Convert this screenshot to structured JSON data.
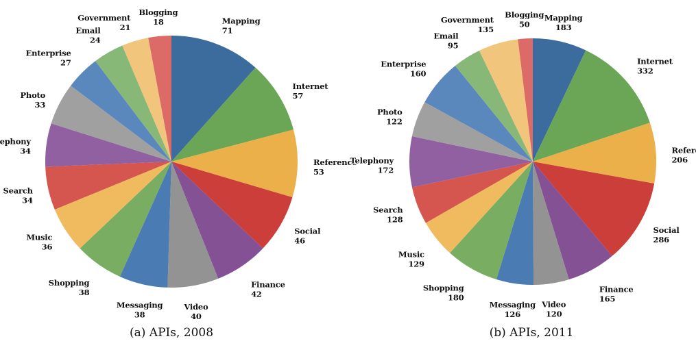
{
  "chart_data": [
    {
      "type": "pie",
      "title": "(a) APIs, 2008",
      "start": "12 o'clock, clockwise",
      "slices": [
        {
          "label": "Mapping",
          "value": 71,
          "color": "#3c6b9e"
        },
        {
          "label": "Internet",
          "value": 57,
          "color": "#6aa656"
        },
        {
          "label": "Reference",
          "value": 53,
          "color": "#ebb04a"
        },
        {
          "label": "Social",
          "value": 46,
          "color": "#cc3e3a"
        },
        {
          "label": "Finance",
          "value": 42,
          "color": "#845195"
        },
        {
          "label": "Video",
          "value": 40,
          "color": "#939393"
        },
        {
          "label": "Messaging",
          "value": 38,
          "color": "#4a7bb2"
        },
        {
          "label": "Shopping",
          "value": 38,
          "color": "#78ad62"
        },
        {
          "label": "Music",
          "value": 36,
          "color": "#f0bb5f"
        },
        {
          "label": "Search",
          "value": 34,
          "color": "#d5554f"
        },
        {
          "label": "Telephony",
          "value": 34,
          "color": "#9160a1"
        },
        {
          "label": "Photo",
          "value": 33,
          "color": "#a0a0a0"
        },
        {
          "label": "Enterprise",
          "value": 27,
          "color": "#5a88bc"
        },
        {
          "label": "Email",
          "value": 24,
          "color": "#88b878"
        },
        {
          "label": "Government",
          "value": 21,
          "color": "#f2c57c"
        },
        {
          "label": "Blogging",
          "value": 18,
          "color": "#dc6a66"
        }
      ]
    },
    {
      "type": "pie",
      "title": "(b) APIs, 2011",
      "start": "12 o'clock, clockwise",
      "slices": [
        {
          "label": "Mapping",
          "value": 183,
          "color": "#3c6b9e"
        },
        {
          "label": "Internet",
          "value": 332,
          "color": "#6aa656"
        },
        {
          "label": "Reference",
          "value": 206,
          "color": "#ebb04a"
        },
        {
          "label": "Social",
          "value": 286,
          "color": "#cc3e3a"
        },
        {
          "label": "Finance",
          "value": 165,
          "color": "#845195"
        },
        {
          "label": "Video",
          "value": 120,
          "color": "#939393"
        },
        {
          "label": "Messaging",
          "value": 126,
          "color": "#4a7bb2"
        },
        {
          "label": "Shopping",
          "value": 180,
          "color": "#78ad62"
        },
        {
          "label": "Music",
          "value": 129,
          "color": "#f0bb5f"
        },
        {
          "label": "Search",
          "value": 128,
          "color": "#d5554f"
        },
        {
          "label": "Telephony",
          "value": 172,
          "color": "#9160a1"
        },
        {
          "label": "Photo",
          "value": 122,
          "color": "#a0a0a0"
        },
        {
          "label": "Enterprise",
          "value": 160,
          "color": "#5a88bc"
        },
        {
          "label": "Email",
          "value": 95,
          "color": "#88b878"
        },
        {
          "label": "Government",
          "value": 135,
          "color": "#f2c57c"
        },
        {
          "label": "Blogging",
          "value": 50,
          "color": "#dc6a66"
        }
      ]
    }
  ]
}
